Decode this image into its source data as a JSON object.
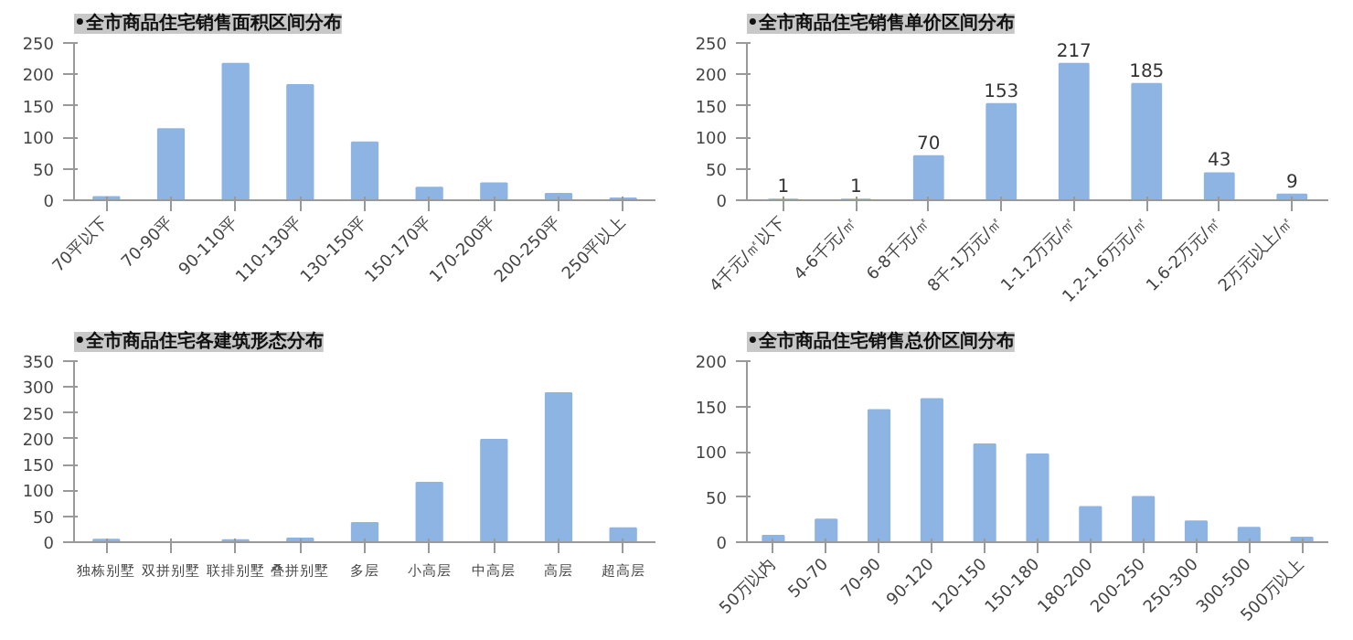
{
  "chart_data": [
    {
      "type": "bar",
      "title": "•全市商品住宅销售面积区间分布",
      "categories": [
        "70平以下",
        "70-90平",
        "90-110平",
        "110-130平",
        "130-150平",
        "150-170平",
        "170-200平",
        "200-250平",
        "250平以上"
      ],
      "values": [
        5,
        113,
        217,
        183,
        92,
        20,
        27,
        10,
        3
      ],
      "color": "#8db4e2",
      "ylim": [
        0,
        250
      ],
      "yticks": [
        0,
        50,
        100,
        150,
        200,
        250
      ],
      "grid": false
    },
    {
      "type": "bar",
      "title": "•全市商品住宅销售单价区间分布",
      "categories": [
        "4千元/㎡以下",
        "4-6千元/㎡",
        "6-8千元/㎡",
        "8千-1万元/㎡",
        "1-1.2万元/㎡",
        "1.2-1.6万元/㎡",
        "1.6-2万元/㎡",
        "2万元以上/㎡"
      ],
      "values": [
        1,
        1,
        70,
        153,
        217,
        185,
        43,
        9
      ],
      "color": "#8db4e2",
      "ylim": [
        0,
        250
      ],
      "yticks": [
        0,
        50,
        100,
        150,
        200,
        250
      ],
      "grid": false,
      "data_labels": true
    },
    {
      "type": "bar",
      "title": "•全市商品住宅各建筑形态分布",
      "categories": [
        "独栋别墅",
        "双拼别墅",
        "联排别墅",
        "叠拼别墅",
        "多层",
        "小高层",
        "中高层",
        "高层",
        "超高层"
      ],
      "values": [
        5,
        0,
        4,
        7,
        37,
        115,
        198,
        288,
        27
      ],
      "color": "#8db4e2",
      "ylim": [
        0,
        350
      ],
      "yticks": [
        0,
        50,
        100,
        150,
        200,
        250,
        300,
        350
      ],
      "grid": false
    },
    {
      "type": "bar",
      "title": "•全市商品住宅销售总价区间分布",
      "categories": [
        "50万以内",
        "50-70",
        "70-90",
        "90-120",
        "120-150",
        "150-180",
        "180-200",
        "200-250",
        "250-300",
        "300-500",
        "500万以上"
      ],
      "values": [
        7,
        25,
        146,
        158,
        108,
        97,
        39,
        50,
        23,
        16,
        5
      ],
      "color": "#8db4e2",
      "ylim": [
        0,
        200
      ],
      "yticks": [
        0,
        50,
        100,
        150,
        200
      ],
      "grid": false
    }
  ]
}
